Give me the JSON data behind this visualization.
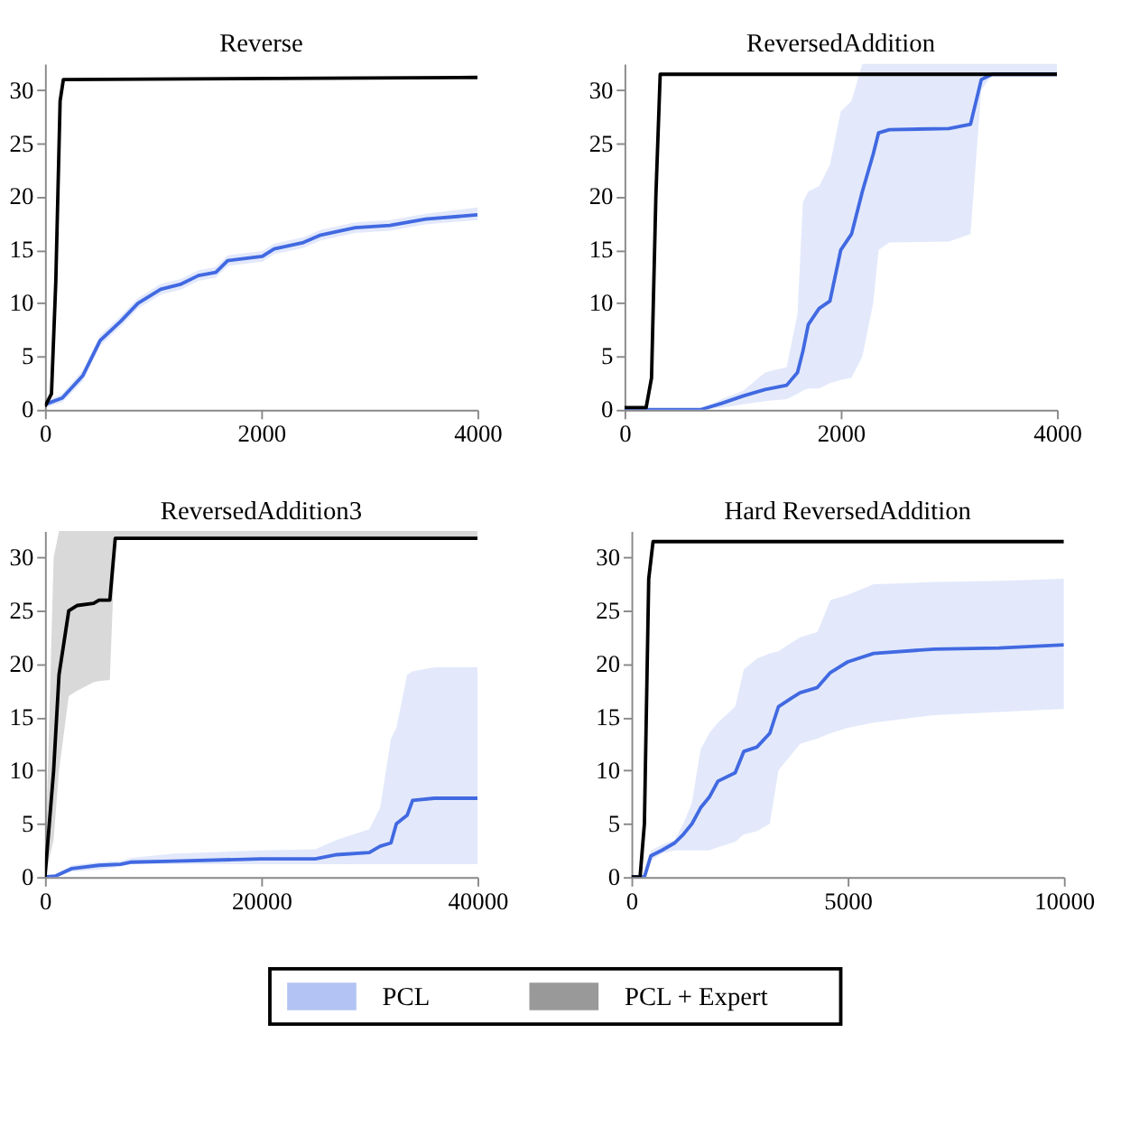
{
  "chart_data": [
    {
      "type": "line",
      "title": "Reverse",
      "xlim": [
        0,
        4000
      ],
      "xticks": [
        0,
        2000,
        4000
      ],
      "ylim": [
        0,
        32.5
      ],
      "yticks": [
        0,
        5,
        10,
        15,
        20,
        25,
        30
      ],
      "grid": false,
      "legend": "bottom",
      "series": [
        {
          "name": "PCL",
          "color": "#4169e1",
          "x": [
            0,
            160,
            350,
            510,
            700,
            860,
            1070,
            1260,
            1420,
            1580,
            1690,
            2010,
            2120,
            2390,
            2550,
            2870,
            3190,
            3520,
            4000
          ],
          "values": [
            0.5,
            1.1,
            3.2,
            6.5,
            8.3,
            10,
            11.3,
            11.8,
            12.6,
            12.9,
            14,
            14.4,
            15.1,
            15.7,
            16.4,
            17.1,
            17.3,
            17.9,
            18.3
          ],
          "lower": [
            0.2,
            0.7,
            2.7,
            6,
            7.8,
            9.5,
            10.8,
            11.3,
            12.1,
            12.4,
            13.5,
            13.9,
            14.6,
            15.2,
            15.9,
            16.6,
            16.8,
            17.4,
            17.8
          ],
          "upper": [
            0.8,
            1.5,
            3.7,
            7,
            8.8,
            10.5,
            11.8,
            12.3,
            13.1,
            13.4,
            14.5,
            14.9,
            15.6,
            16.2,
            16.9,
            17.6,
            17.8,
            18.4,
            19
          ]
        },
        {
          "name": "PCL + Expert",
          "color": "#000000",
          "x": [
            0,
            60,
            100,
            140,
            170,
            4000
          ],
          "values": [
            0.3,
            1.5,
            12,
            29,
            31,
            31.2
          ]
        }
      ]
    },
    {
      "type": "line",
      "title": "ReversedAddition",
      "xlim": [
        0,
        4000
      ],
      "xticks": [
        0,
        2000,
        4000
      ],
      "ylim": [
        0,
        32.5
      ],
      "yticks": [
        0,
        5,
        10,
        15,
        20,
        25,
        30
      ],
      "grid": false,
      "series": [
        {
          "color": "#4169e1",
          "x": [
            0,
            700,
            900,
            1100,
            1300,
            1500,
            1600,
            1650,
            1700,
            1800,
            1900,
            2000,
            2100,
            2200,
            2300,
            2350,
            2450,
            3000,
            3200,
            3300,
            3400,
            4000
          ],
          "values": [
            0,
            0,
            0.6,
            1.3,
            1.9,
            2.3,
            3.5,
            5.5,
            8,
            9.5,
            10.2,
            15,
            16.5,
            20.5,
            24,
            26,
            26.3,
            26.4,
            26.8,
            31,
            31.5,
            31.5
          ],
          "lower": [
            0,
            0,
            0.2,
            0.5,
            0.8,
            1,
            1.5,
            1.8,
            2,
            2,
            2.5,
            2.8,
            3,
            5,
            10,
            15,
            15.7,
            15.8,
            16.5,
            30,
            31.5,
            31.5
          ],
          "upper": [
            0,
            0,
            1,
            1.8,
            3.5,
            4,
            9,
            19.5,
            20.5,
            21,
            23,
            28,
            29,
            32.5,
            32.5,
            32.5,
            32.5,
            32.5,
            32.5,
            32.5,
            32.5,
            32.5
          ]
        },
        {
          "color": "#000000",
          "x": [
            0,
            200,
            250,
            290,
            330,
            4000
          ],
          "values": [
            0.2,
            0.2,
            3,
            20,
            31.5,
            31.5
          ]
        }
      ]
    },
    {
      "type": "line",
      "title": "ReversedAddition3",
      "xlim": [
        0,
        40000
      ],
      "xticks": [
        0,
        20000,
        40000
      ],
      "ylim": [
        0,
        32.5
      ],
      "yticks": [
        0,
        5,
        10,
        15,
        20,
        25,
        30
      ],
      "grid": false,
      "series": [
        {
          "color": "#4169e1",
          "x": [
            0,
            1000,
            2500,
            5000,
            7000,
            8000,
            12000,
            20000,
            25000,
            27000,
            30000,
            31000,
            32000,
            32500,
            33500,
            34000,
            36000,
            40000
          ],
          "values": [
            0,
            0.1,
            0.8,
            1.1,
            1.2,
            1.4,
            1.5,
            1.7,
            1.7,
            2.1,
            2.3,
            2.9,
            3.2,
            5,
            5.8,
            7.2,
            7.4,
            7.4
          ],
          "lower": [
            0,
            0,
            0.5,
            0.7,
            1,
            1.2,
            1.2,
            1.2,
            1.2,
            1.2,
            1.2,
            1.2,
            1.2,
            1.2,
            1.2,
            1.2,
            1.2,
            1.2
          ],
          "upper": [
            0,
            0.3,
            1.1,
            1.4,
            1.5,
            1.8,
            2.2,
            2.5,
            2.6,
            3.5,
            4.5,
            6.5,
            13,
            14,
            19,
            19.3,
            19.7,
            19.7
          ]
        },
        {
          "color": "#000000",
          "x": [
            0,
            800,
            1300,
            2200,
            3000,
            4500,
            5000,
            6000,
            6500,
            40000
          ],
          "values": [
            0,
            10,
            19,
            25,
            25.5,
            25.7,
            26,
            26,
            31.8,
            31.8
          ],
          "lower": [
            0,
            3.5,
            10,
            17,
            17.5,
            18.3,
            18.4,
            18.5,
            31.8,
            31.8
          ],
          "upper": [
            0,
            30,
            32.5,
            32.5,
            32.5,
            32.5,
            32.5,
            32.5,
            32.5,
            32.5
          ]
        }
      ]
    },
    {
      "type": "line",
      "title": "Hard ReversedAddition",
      "xlim": [
        0,
        10000
      ],
      "xticks": [
        0,
        5000,
        10000
      ],
      "ylim": [
        0,
        32.5
      ],
      "yticks": [
        0,
        5,
        10,
        15,
        20,
        25,
        30
      ],
      "grid": false,
      "series": [
        {
          "color": "#4169e1",
          "x": [
            0,
            300,
            450,
            700,
            1000,
            1200,
            1400,
            1600,
            1800,
            2000,
            2400,
            2600,
            2900,
            3200,
            3400,
            3700,
            3900,
            4300,
            4600,
            5000,
            5600,
            7000,
            8500,
            10000
          ],
          "values": [
            0,
            0,
            2,
            2.5,
            3.2,
            4,
            5,
            6.5,
            7.5,
            9,
            9.8,
            11.8,
            12.2,
            13.5,
            16,
            16.8,
            17.3,
            17.8,
            19.2,
            20.2,
            21,
            21.4,
            21.5,
            21.8
          ],
          "lower": [
            0,
            0,
            1.5,
            2.2,
            2.5,
            2.5,
            2.5,
            2.5,
            2.5,
            2.8,
            3.3,
            4,
            4.3,
            5,
            10,
            11.5,
            12.5,
            13,
            13.5,
            14,
            14.5,
            15.2,
            15.5,
            15.8
          ],
          "upper": [
            0,
            0,
            2.5,
            3,
            3.5,
            5,
            7,
            12,
            13.5,
            14.5,
            16,
            19.5,
            20.5,
            21,
            21.2,
            22,
            22.5,
            23,
            26,
            26.5,
            27.5,
            27.7,
            27.8,
            28
          ]
        },
        {
          "color": "#000000",
          "x": [
            0,
            200,
            300,
            400,
            500,
            10000
          ],
          "values": [
            0,
            0,
            5,
            28,
            31.5,
            31.5
          ]
        }
      ]
    }
  ]
}
